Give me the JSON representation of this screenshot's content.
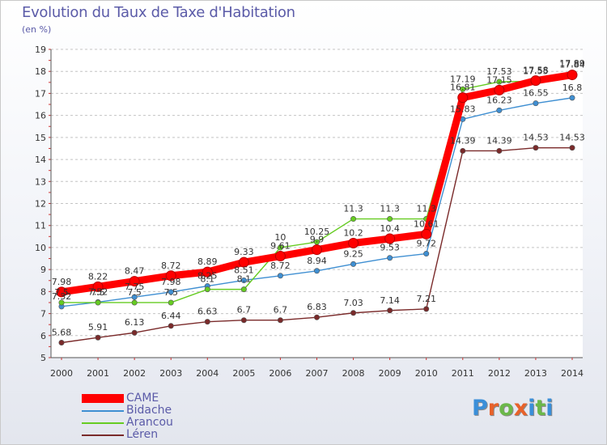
{
  "title": "Evolution du Taux de Taxe d'Habitation",
  "subtitle": "(en %)",
  "logo": {
    "text": "Proxiti",
    "letter_colors": [
      "#3a8fd9",
      "#e8622a",
      "#6bb84a",
      "#e8622a",
      "#3a8fd9",
      "#6bb84a",
      "#3a8fd9"
    ]
  },
  "chart_data": {
    "type": "line",
    "title": "Evolution du Taux de Taxe d'Habitation",
    "ylabel": "(en %)",
    "xlabel": "",
    "x": [
      2000,
      2001,
      2002,
      2003,
      2004,
      2005,
      2006,
      2007,
      2008,
      2009,
      2010,
      2011,
      2012,
      2013,
      2014
    ],
    "ylim": [
      5,
      19
    ],
    "yticks": [
      5,
      6,
      7,
      8,
      9,
      10,
      11,
      12,
      13,
      14,
      15,
      16,
      17,
      18,
      19
    ],
    "grid": "horizontal dashed",
    "legend_position": "bottom-left",
    "series": [
      {
        "name": "CAME",
        "color": "#ff0000",
        "values": [
          7.98,
          8.22,
          8.47,
          8.72,
          8.89,
          9.33,
          9.61,
          9.9,
          10.2,
          10.4,
          10.61,
          16.81,
          17.15,
          17.58,
          17.84
        ],
        "labels": [
          "7.98",
          "8.22",
          "8.47",
          "8.72",
          "8.89",
          "9.33",
          "9.61",
          "9.9",
          "10.2",
          "10.4",
          "10.61",
          "16.81",
          "17.15",
          "17.58",
          "17.84"
        ]
      },
      {
        "name": "Bidache",
        "color": "#3f8fd2",
        "values": [
          7.32,
          7.52,
          7.75,
          7.98,
          8.25,
          8.51,
          8.72,
          8.94,
          9.25,
          9.53,
          9.72,
          15.83,
          16.23,
          16.55,
          16.8
        ],
        "labels": [
          "7.32",
          "7.52",
          "7.75",
          "7.98",
          "8.25",
          "8.51",
          "8.72",
          "8.94",
          "9.25",
          "9.53",
          "9.72",
          "15.83",
          "16.23",
          "16.55",
          "16.8"
        ]
      },
      {
        "name": "Arancou",
        "color": "#66cc22",
        "values": [
          7.5,
          7.5,
          7.5,
          7.5,
          8.1,
          8.1,
          10,
          10.25,
          11.3,
          11.3,
          11.3,
          17.19,
          17.53,
          17.55,
          17.89
        ],
        "labels": [
          "7.5",
          "7.5",
          "7.5",
          "7.5",
          "8.1",
          "8.1",
          "10",
          "10.25",
          "11.3",
          "11.3",
          "11.3",
          "17.19",
          "17.53",
          "17.55",
          "17.89"
        ]
      },
      {
        "name": "Léren",
        "color": "#7a2a2a",
        "values": [
          5.68,
          5.91,
          6.13,
          6.44,
          6.63,
          6.7,
          6.7,
          6.83,
          7.03,
          7.14,
          7.21,
          14.39,
          14.39,
          14.53,
          14.53
        ],
        "labels": [
          "5.68",
          "5.91",
          "6.13",
          "6.44",
          "6.63",
          "6.7",
          "6.7",
          "6.83",
          "7.03",
          "7.14",
          "7.21",
          "14.39",
          "14.39",
          "14.53",
          "14.53"
        ]
      }
    ]
  }
}
